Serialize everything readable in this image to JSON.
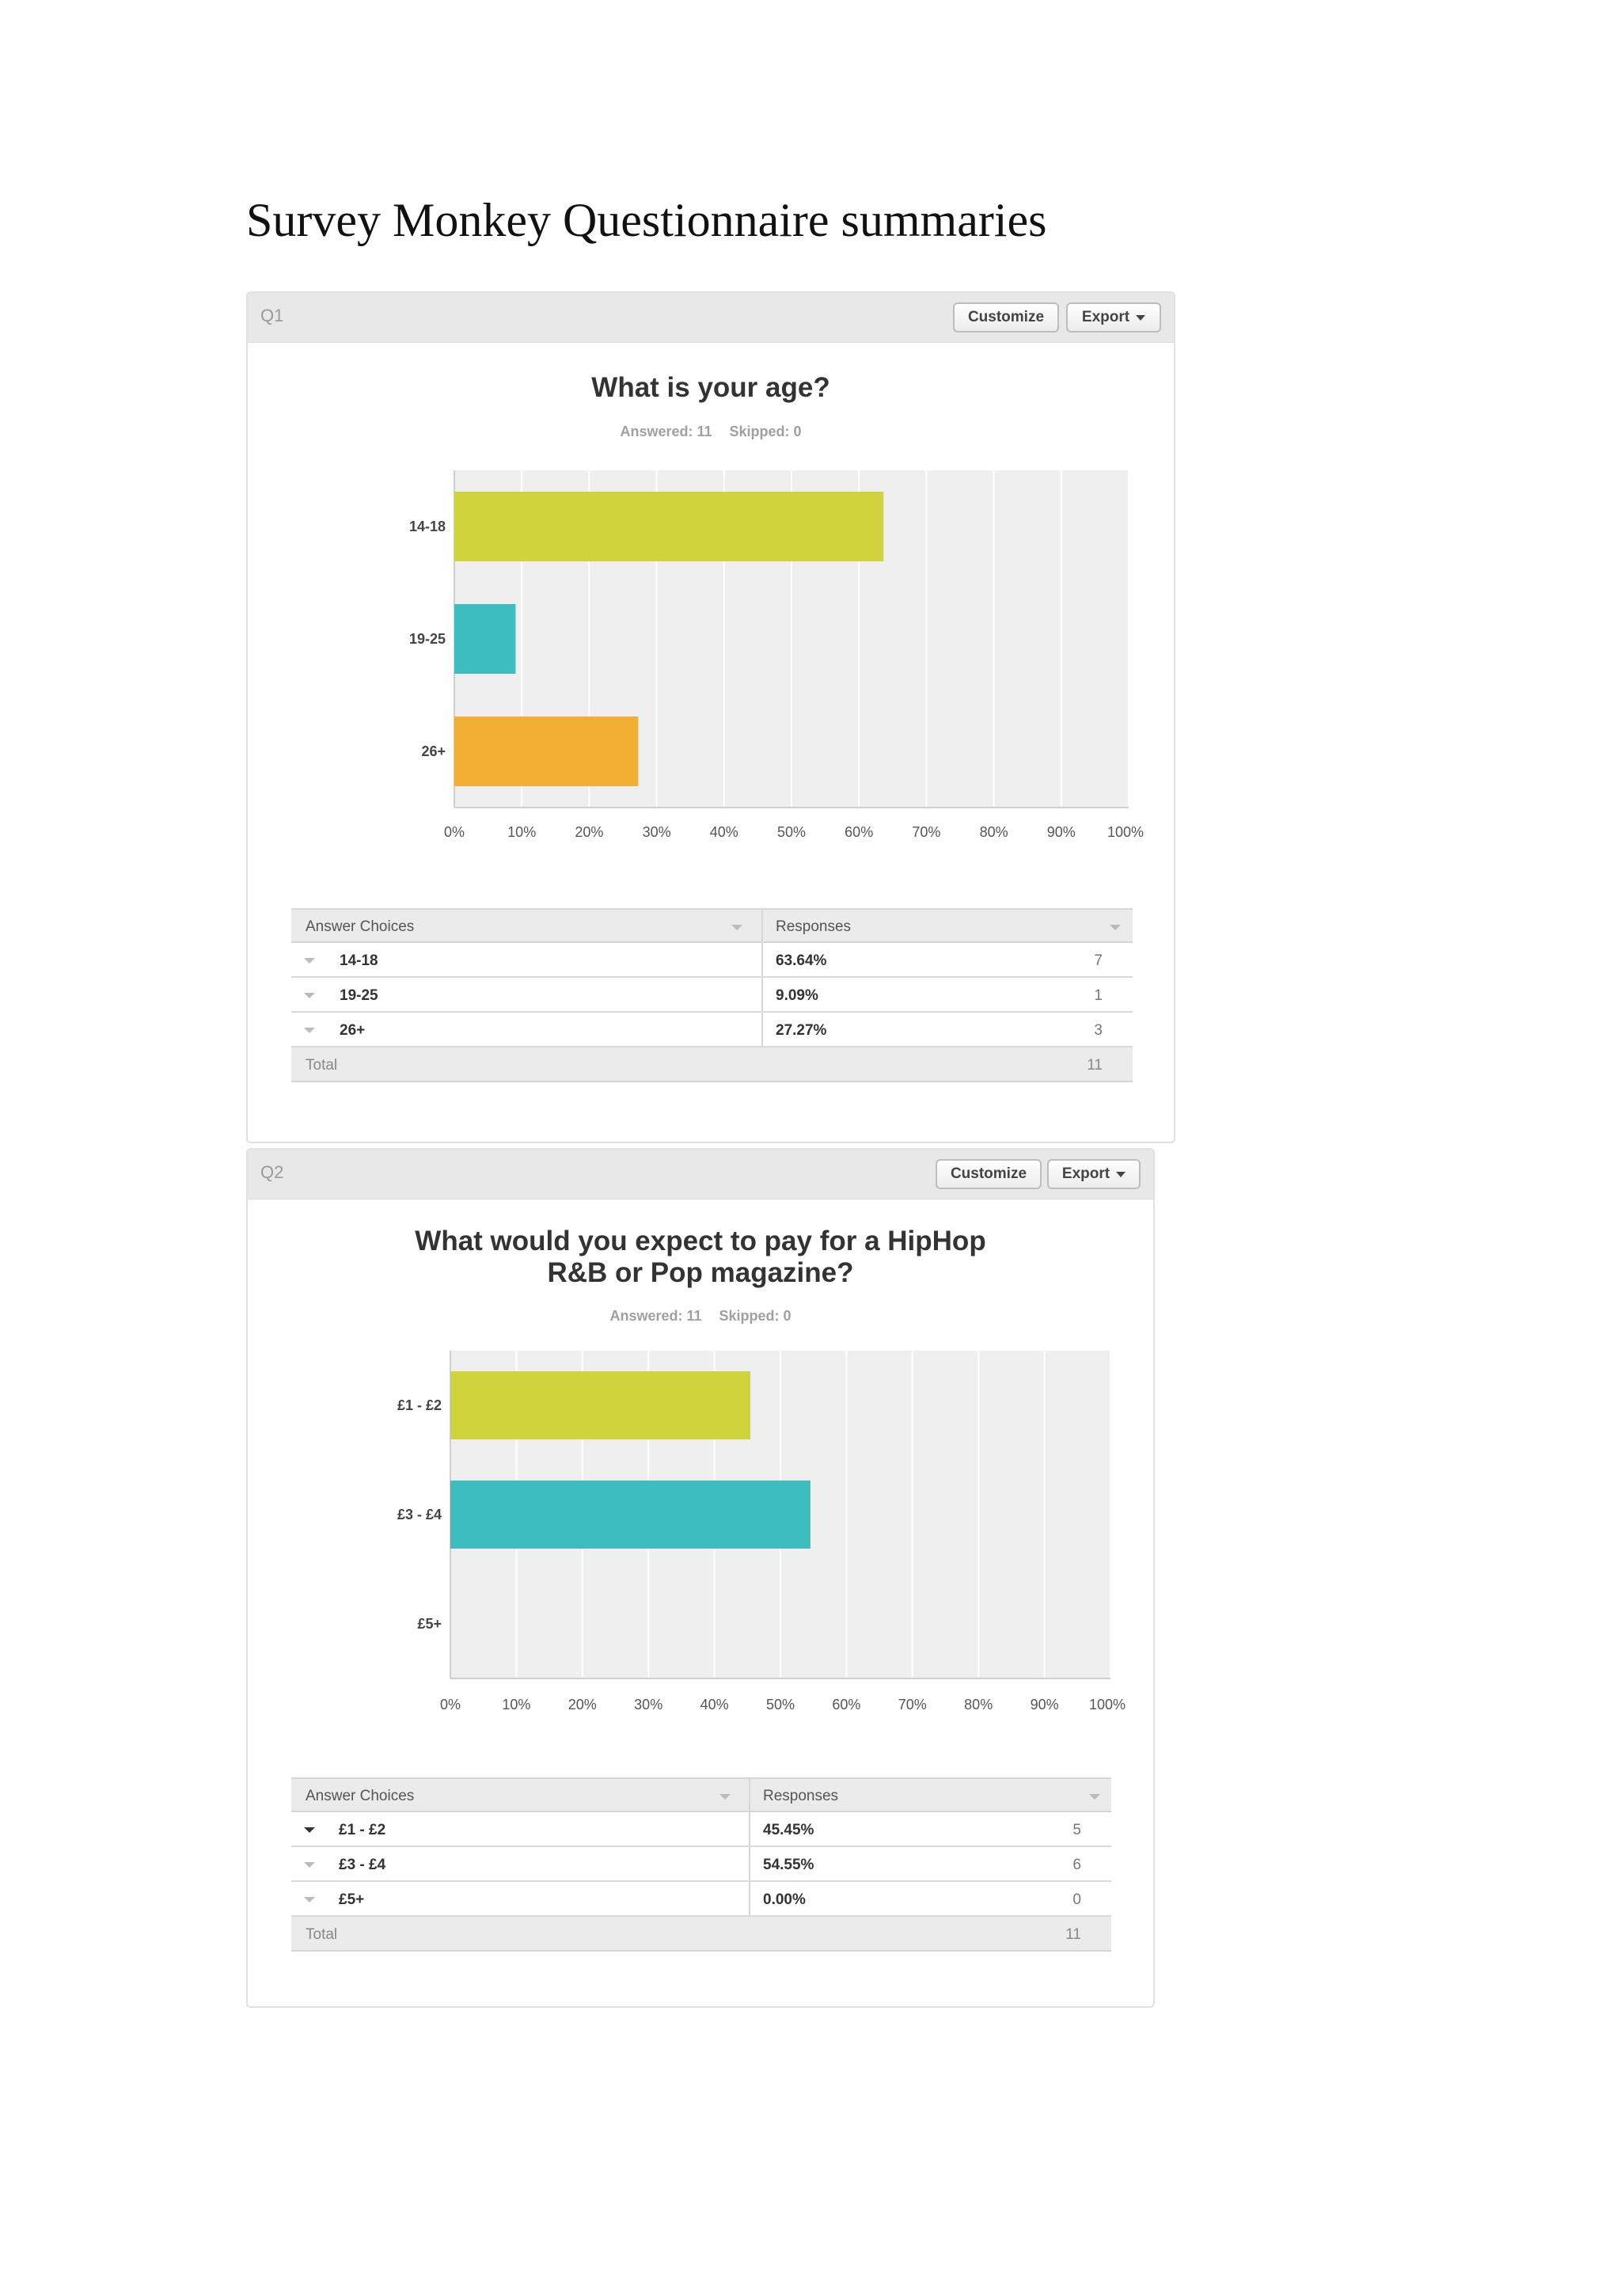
{
  "document": {
    "title": "Survey Monkey Questionnaire summaries"
  },
  "buttons": {
    "customize": "Customize",
    "export": "Export"
  },
  "table_labels": {
    "answer_choices": "Answer Choices",
    "responses": "Responses",
    "total": "Total"
  },
  "questions": [
    {
      "label": "Q1",
      "title_lines": [
        "What is your age?"
      ],
      "answered": "Answered: 11",
      "skipped": "Skipped: 0",
      "rows": [
        {
          "choice": "14-18",
          "percent": "63.64%",
          "count": "7"
        },
        {
          "choice": "19-25",
          "percent": "9.09%",
          "count": "1"
        },
        {
          "choice": "26+",
          "percent": "27.27%",
          "count": "3"
        }
      ],
      "total": "11"
    },
    {
      "label": "Q2",
      "title_lines": [
        "What would you expect to pay for a HipHop",
        "R&B or Pop magazine?"
      ],
      "answered": "Answered: 11",
      "skipped": "Skipped: 0",
      "rows": [
        {
          "choice": "£1 - £2",
          "percent": "45.45%",
          "count": "5"
        },
        {
          "choice": "£3 - £4",
          "percent": "54.55%",
          "count": "6"
        },
        {
          "choice": "£5+",
          "percent": "0.00%",
          "count": "0"
        }
      ],
      "total": "11"
    }
  ],
  "chart_data": [
    {
      "type": "bar",
      "orientation": "horizontal",
      "title": "What is your age?",
      "categories": [
        "14-18",
        "19-25",
        "26+"
      ],
      "values": [
        63.64,
        9.09,
        27.27
      ],
      "colors": [
        "#cfd33c",
        "#3dbdbf",
        "#f3ae34"
      ],
      "xticks": [
        "0%",
        "10%",
        "20%",
        "30%",
        "40%",
        "50%",
        "60%",
        "70%",
        "80%",
        "90%",
        "100%"
      ],
      "xlim": [
        0,
        100
      ],
      "grid": true,
      "plot_background": "#efefef"
    },
    {
      "type": "bar",
      "orientation": "horizontal",
      "title": "What would you expect to pay for a HipHop R&B or Pop magazine?",
      "categories": [
        "£1 - £2",
        "£3 - £4",
        "£5+"
      ],
      "values": [
        45.45,
        54.55,
        0
      ],
      "colors": [
        "#cfd33c",
        "#3dbdbf",
        "#f3ae34"
      ],
      "xticks": [
        "0%",
        "10%",
        "20%",
        "30%",
        "40%",
        "50%",
        "60%",
        "70%",
        "80%",
        "90%",
        "100%"
      ],
      "xlim": [
        0,
        100
      ],
      "grid": true,
      "plot_background": "#efefef"
    }
  ]
}
